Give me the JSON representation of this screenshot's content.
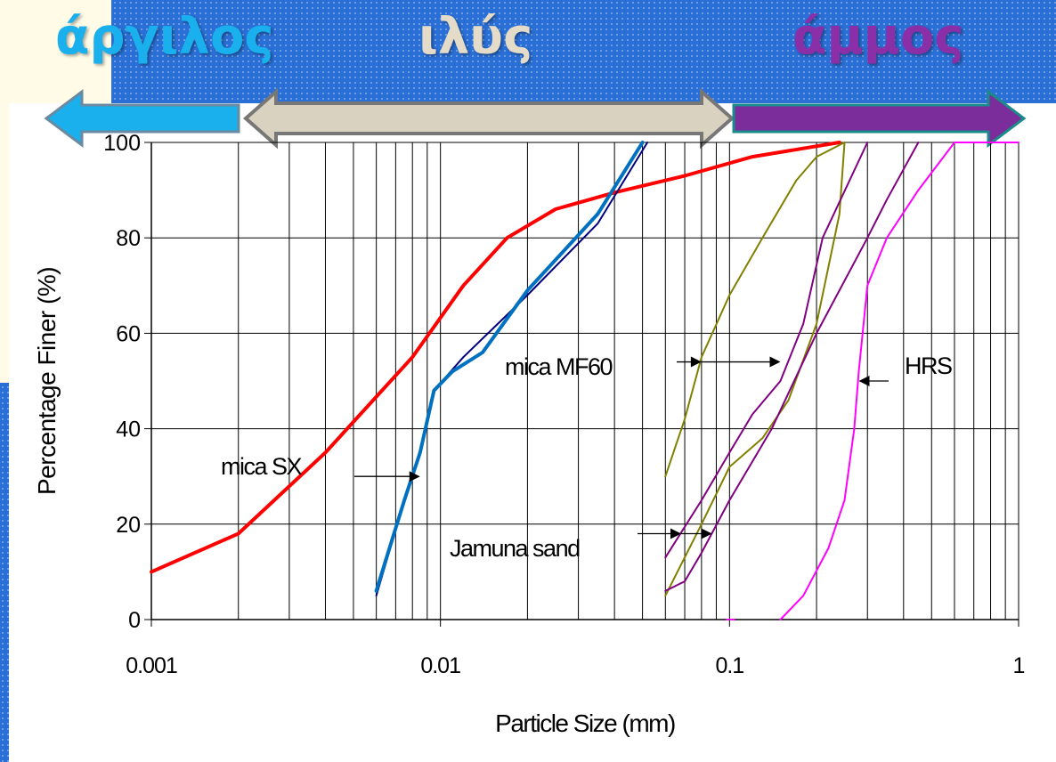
{
  "header": {
    "clay_label": "άργιλος",
    "silt_label": "ιλύς",
    "sand_label": "άμμος",
    "colors": {
      "clay": "#1ab0ee",
      "silt": "#d9d2c0",
      "sand": "#7b2d9c"
    }
  },
  "chart_data": {
    "type": "line",
    "title": "",
    "xlabel": "Particle Size (mm)",
    "ylabel": "Percentage Finer (%)",
    "x_scale": "log",
    "xlim": [
      0.001,
      1
    ],
    "ylim": [
      0,
      100
    ],
    "x_ticks": [
      "0.001",
      "0.01",
      "0.1",
      "1"
    ],
    "y_ticks": [
      "0",
      "20",
      "40",
      "60",
      "80",
      "100"
    ],
    "grid": {
      "vertical": true,
      "horizontal": true
    },
    "series": [
      {
        "color": "#ff0000",
        "points": [
          [
            0.001,
            10
          ],
          [
            0.002,
            18
          ],
          [
            0.004,
            35
          ],
          [
            0.008,
            55
          ],
          [
            0.012,
            70
          ],
          [
            0.017,
            80
          ],
          [
            0.025,
            86
          ],
          [
            0.04,
            89.5
          ],
          [
            0.07,
            93
          ],
          [
            0.12,
            97
          ],
          [
            0.24,
            100
          ]
        ]
      },
      {
        "color": "#000080",
        "points": [
          [
            0.006,
            5
          ],
          [
            0.0075,
            25
          ],
          [
            0.0085,
            35
          ],
          [
            0.0095,
            48
          ],
          [
            0.012,
            55
          ],
          [
            0.02,
            68
          ],
          [
            0.035,
            83
          ],
          [
            0.052,
            100
          ]
        ]
      },
      {
        "color": "#0070c0",
        "points": [
          [
            0.006,
            6
          ],
          [
            0.0075,
            25
          ],
          [
            0.0085,
            35
          ],
          [
            0.0095,
            48
          ],
          [
            0.011,
            52
          ],
          [
            0.014,
            56
          ],
          [
            0.02,
            69
          ],
          [
            0.035,
            85
          ],
          [
            0.05,
            100
          ]
        ]
      },
      {
        "color": "#808000",
        "points": [
          [
            0.06,
            30
          ],
          [
            0.07,
            42
          ],
          [
            0.08,
            55
          ],
          [
            0.1,
            68
          ],
          [
            0.13,
            80
          ],
          [
            0.17,
            92
          ],
          [
            0.2,
            97
          ],
          [
            0.25,
            100
          ]
        ]
      },
      {
        "color": "#808000",
        "points": [
          [
            0.06,
            5
          ],
          [
            0.08,
            20
          ],
          [
            0.1,
            32
          ],
          [
            0.13,
            38
          ],
          [
            0.16,
            46
          ],
          [
            0.2,
            62
          ],
          [
            0.24,
            85
          ],
          [
            0.25,
            100
          ]
        ]
      },
      {
        "color": "#800080",
        "points": [
          [
            0.06,
            13
          ],
          [
            0.08,
            25
          ],
          [
            0.1,
            35
          ],
          [
            0.12,
            43
          ],
          [
            0.15,
            50
          ],
          [
            0.18,
            62
          ],
          [
            0.21,
            80
          ],
          [
            0.3,
            100
          ]
        ]
      },
      {
        "color": "#800080",
        "points": [
          [
            0.06,
            6
          ],
          [
            0.07,
            8
          ],
          [
            0.08,
            14
          ],
          [
            0.1,
            25
          ],
          [
            0.14,
            40
          ],
          [
            0.2,
            60
          ],
          [
            0.3,
            80
          ],
          [
            0.35,
            88
          ],
          [
            0.45,
            100
          ]
        ]
      },
      {
        "color": "#ff00ff",
        "points": [
          [
            0.1,
            0
          ]
        ]
      },
      {
        "color": "#ff00ff",
        "points": [
          [
            0.15,
            0
          ],
          [
            0.18,
            5
          ],
          [
            0.22,
            15
          ],
          [
            0.25,
            25
          ],
          [
            0.27,
            40
          ],
          [
            0.28,
            52
          ],
          [
            0.3,
            70
          ],
          [
            0.35,
            80
          ],
          [
            0.45,
            90
          ],
          [
            0.6,
            100
          ],
          [
            1,
            100
          ]
        ]
      }
    ],
    "annotations": [
      {
        "text": "mica SX",
        "arrows": [
          [
            0.0085,
            30
          ]
        ]
      },
      {
        "text": "mica MF60",
        "arrows": [
          [
            0.08,
            54
          ],
          [
            0.15,
            54
          ]
        ]
      },
      {
        "text": "HRS",
        "arrows": [
          [
            0.28,
            50
          ]
        ]
      },
      {
        "text": "Jamuna sand",
        "arrows": [
          [
            0.068,
            18
          ],
          [
            0.087,
            18
          ]
        ]
      }
    ]
  }
}
